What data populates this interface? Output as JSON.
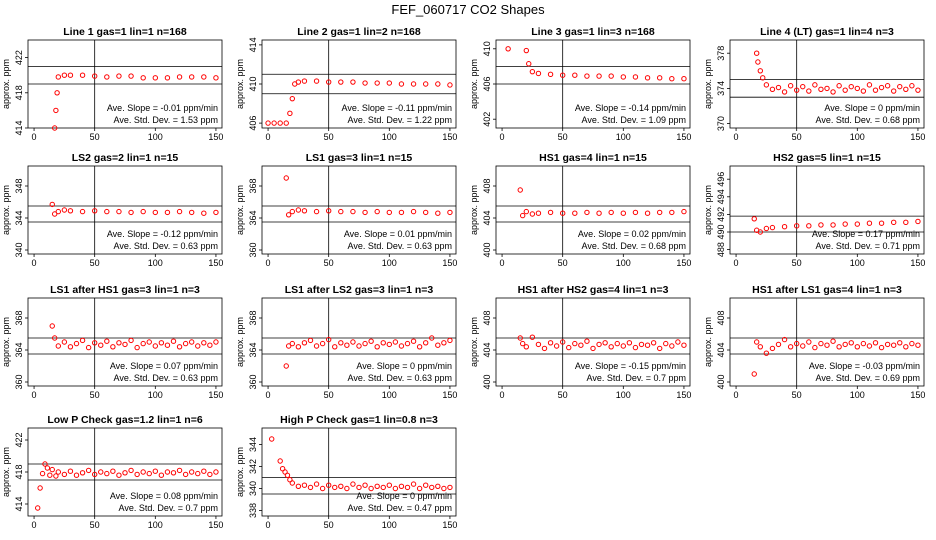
{
  "figure_title": "FEF_060717  CO2 Shapes",
  "ylabel": "approx. ppm",
  "slope_prefix": "Ave. Slope = ",
  "slope_unit": " ppm/min",
  "std_prefix": "Ave. Std. Dev. = ",
  "std_unit": " ppm",
  "chart_data": [
    {
      "type": "scatter",
      "title": "Line 1 gas=1 lin=1 n=168",
      "ylim": [
        414,
        424
      ],
      "yticks": [
        414,
        418,
        422
      ],
      "xticks": [
        0,
        50,
        100,
        150
      ],
      "hlines": [
        421,
        419
      ],
      "vline": 50,
      "slope": "-0.01",
      "std": "1.53",
      "x": [
        17,
        18,
        19,
        20,
        25,
        30,
        40,
        50,
        60,
        70,
        80,
        90,
        100,
        110,
        120,
        130,
        140,
        150
      ],
      "y": [
        414,
        416,
        418,
        419.8,
        420,
        420,
        420,
        419.9,
        419.8,
        419.9,
        419.9,
        419.7,
        419.7,
        419.7,
        419.8,
        419.8,
        419.8,
        419.7
      ]
    },
    {
      "type": "scatter",
      "title": "Line 2 gas=1 lin=2 n=168",
      "ylim": [
        405.5,
        414.5
      ],
      "yticks": [
        406,
        410,
        414
      ],
      "xticks": [
        0,
        50,
        100,
        150
      ],
      "hlines": [
        411,
        409
      ],
      "vline": 50,
      "slope": "-0.11",
      "std": "1.22",
      "x": [
        0,
        5,
        10,
        15,
        18,
        20,
        22,
        25,
        30,
        40,
        50,
        60,
        70,
        80,
        90,
        100,
        110,
        120,
        130,
        140,
        150
      ],
      "y": [
        406,
        406,
        406,
        406,
        407,
        408.5,
        410,
        410.2,
        410.3,
        410.3,
        410.2,
        410.2,
        410.2,
        410.1,
        410.1,
        410.1,
        410,
        410,
        410,
        410,
        409.9
      ],
      "filled": true
    },
    {
      "type": "scatter",
      "title": "Line 3 gas=1 lin=3 n=168",
      "ylim": [
        401,
        411
      ],
      "yticks": [
        402,
        406,
        410
      ],
      "xticks": [
        0,
        50,
        100,
        150
      ],
      "hlines": [
        408,
        406
      ],
      "vline": 50,
      "slope": "-0.14",
      "std": "1.09",
      "x": [
        5,
        20,
        22,
        25,
        30,
        40,
        50,
        60,
        70,
        80,
        90,
        100,
        110,
        120,
        130,
        140,
        150
      ],
      "y": [
        410,
        409.8,
        408.3,
        407.4,
        407.2,
        407.1,
        407,
        407,
        406.9,
        406.9,
        406.9,
        406.8,
        406.8,
        406.7,
        406.7,
        406.6,
        406.6
      ]
    },
    {
      "type": "scatter",
      "title": "Line 4 (LT) gas=1 lin=4 n=3",
      "ylim": [
        369.5,
        379.5
      ],
      "yticks": [
        370,
        374,
        378
      ],
      "xticks": [
        0,
        50,
        100,
        150
      ],
      "hlines": [
        375,
        373
      ],
      "vline": 50,
      "slope": "0",
      "std": "0.68",
      "x": [
        17,
        18,
        20,
        22,
        25,
        30,
        35,
        40,
        45,
        50,
        55,
        60,
        65,
        70,
        75,
        80,
        85,
        90,
        95,
        100,
        105,
        110,
        115,
        120,
        125,
        130,
        135,
        140,
        145,
        150
      ],
      "y": [
        378,
        377,
        376,
        375.2,
        374.4,
        373.9,
        374.1,
        373.6,
        374.3,
        373.8,
        374.2,
        373.7,
        374.4,
        373.9,
        374,
        373.6,
        374.3,
        373.8,
        374.2,
        374,
        373.7,
        374.4,
        373.8,
        374.1,
        374.3,
        373.7,
        374.2,
        373.9,
        374.3,
        373.8
      ]
    },
    {
      "type": "scatter",
      "title": "LS2 gas=2 lin=1 n=15",
      "ylim": [
        339.5,
        350.5
      ],
      "yticks": [
        340,
        344,
        348
      ],
      "xticks": [
        0,
        50,
        100,
        150
      ],
      "hlines": [
        345.5,
        343.5
      ],
      "vline": 50,
      "slope": "-0.12",
      "std": "0.63",
      "x": [
        15,
        17,
        20,
        25,
        30,
        40,
        50,
        60,
        70,
        80,
        90,
        100,
        110,
        120,
        130,
        140,
        150
      ],
      "y": [
        345.7,
        344.5,
        344.8,
        345,
        344.9,
        344.8,
        344.9,
        344.8,
        344.8,
        344.7,
        344.8,
        344.7,
        344.7,
        344.8,
        344.7,
        344.6,
        344.7
      ]
    },
    {
      "type": "scatter",
      "title": "LS1 gas=3 lin=1 n=15",
      "ylim": [
        359.5,
        370.5
      ],
      "yticks": [
        360,
        364,
        368
      ],
      "xticks": [
        0,
        50,
        100,
        150
      ],
      "hlines": [
        365.5,
        363.5
      ],
      "vline": 50,
      "slope": "0.01",
      "std": "0.63",
      "x": [
        15,
        17,
        20,
        25,
        30,
        40,
        50,
        60,
        70,
        80,
        90,
        100,
        110,
        120,
        130,
        140,
        150
      ],
      "y": [
        369,
        364.4,
        364.8,
        365,
        364.9,
        364.8,
        364.9,
        364.8,
        364.8,
        364.7,
        364.8,
        364.7,
        364.7,
        364.8,
        364.7,
        364.6,
        364.7
      ]
    },
    {
      "type": "scatter",
      "title": "HS1 gas=4 lin=1 n=15",
      "ylim": [
        399.5,
        410.5
      ],
      "yticks": [
        400,
        404,
        408
      ],
      "xticks": [
        0,
        50,
        100,
        150
      ],
      "hlines": [
        405.5,
        403.5
      ],
      "vline": 50,
      "slope": "0.02",
      "std": "0.68",
      "x": [
        15,
        17,
        20,
        25,
        30,
        40,
        50,
        60,
        70,
        80,
        90,
        100,
        110,
        120,
        130,
        140,
        150
      ],
      "y": [
        407.5,
        404.3,
        404.8,
        404.5,
        404.6,
        404.7,
        404.6,
        404.6,
        404.7,
        404.6,
        404.7,
        404.6,
        404.7,
        404.6,
        404.7,
        404.7,
        404.8
      ]
    },
    {
      "type": "scatter",
      "title": "HS2 gas=5 lin=1 n=15",
      "ylim": [
        487.5,
        497.5
      ],
      "yticks": [
        488,
        490,
        492,
        494,
        496
      ],
      "xticks": [
        0,
        50,
        100,
        150
      ],
      "hlines": [
        491.8,
        490
      ],
      "vline": 50,
      "slope": "0.17",
      "std": "0.71",
      "x": [
        15,
        17,
        20,
        25,
        30,
        40,
        50,
        60,
        70,
        80,
        90,
        100,
        110,
        120,
        130,
        140,
        150
      ],
      "y": [
        491.5,
        490.2,
        490,
        490.4,
        490.5,
        490.6,
        490.7,
        490.7,
        490.8,
        490.8,
        490.9,
        490.9,
        491,
        491,
        491.1,
        491.1,
        491.2
      ]
    },
    {
      "type": "scatter",
      "title": "LS1 after HS1 gas=3 lin=1 n=3",
      "ylim": [
        359.5,
        370.5
      ],
      "yticks": [
        360,
        364,
        368
      ],
      "xticks": [
        0,
        50,
        100,
        150
      ],
      "hlines": [
        365.5,
        363.5
      ],
      "vline": 50,
      "slope": "0.07",
      "std": "0.63",
      "x": [
        15,
        17,
        20,
        25,
        30,
        35,
        40,
        45,
        50,
        55,
        60,
        65,
        70,
        75,
        80,
        85,
        90,
        95,
        100,
        105,
        110,
        115,
        120,
        125,
        130,
        135,
        140,
        145,
        150
      ],
      "y": [
        367,
        365.5,
        364.5,
        365,
        364.4,
        364.8,
        365.2,
        364.3,
        364.9,
        364.6,
        365.1,
        364.4,
        364.9,
        364.7,
        365.2,
        364.3,
        364.8,
        365,
        364.5,
        364.9,
        364.6,
        365.1,
        364.4,
        364.8,
        365,
        364.5,
        364.9,
        364.6,
        365
      ]
    },
    {
      "type": "scatter",
      "title": "LS1 after LS2 gas=3 lin=1 n=3",
      "ylim": [
        359.5,
        370.5
      ],
      "yticks": [
        360,
        364,
        368
      ],
      "xticks": [
        0,
        50,
        100,
        150
      ],
      "hlines": [
        365.5,
        363.5
      ],
      "vline": 50,
      "slope": "0",
      "std": "0.63",
      "x": [
        15,
        17,
        20,
        25,
        30,
        35,
        40,
        45,
        50,
        55,
        60,
        65,
        70,
        75,
        80,
        85,
        90,
        95,
        100,
        105,
        110,
        115,
        120,
        125,
        130,
        135,
        140,
        145,
        150
      ],
      "y": [
        362,
        364.5,
        364.8,
        364.4,
        364.9,
        365.2,
        364.5,
        364.8,
        365.3,
        364.4,
        364.9,
        364.6,
        365,
        364.5,
        364.8,
        365.1,
        364.4,
        364.9,
        364.7,
        365,
        364.5,
        364.8,
        365.1,
        364.4,
        364.9,
        365.5,
        364.6,
        364.9,
        365.2
      ]
    },
    {
      "type": "scatter",
      "title": "HS1 after HS2 gas=4 lin=1 n=3",
      "ylim": [
        399.5,
        410.5
      ],
      "yticks": [
        400,
        404,
        408
      ],
      "xticks": [
        0,
        50,
        100,
        150
      ],
      "hlines": [
        405.5,
        403.5
      ],
      "vline": 50,
      "slope": "-0.15",
      "std": "0.7",
      "x": [
        15,
        17,
        20,
        25,
        30,
        35,
        40,
        45,
        50,
        55,
        60,
        65,
        70,
        75,
        80,
        85,
        90,
        95,
        100,
        105,
        110,
        115,
        120,
        125,
        130,
        135,
        140,
        145,
        150
      ],
      "y": [
        405.5,
        404.8,
        404.4,
        405.6,
        404.7,
        404.2,
        404.9,
        404.5,
        405,
        404.3,
        404.8,
        404.6,
        405.1,
        404.2,
        404.7,
        404.9,
        404.4,
        404.8,
        404.5,
        404.9,
        404.3,
        404.7,
        404.6,
        404.9,
        404.2,
        404.8,
        404.5,
        405,
        404.6
      ]
    },
    {
      "type": "scatter",
      "title": "HS1 after LS1 gas=4 lin=1 n=3",
      "ylim": [
        399.5,
        410.5
      ],
      "yticks": [
        400,
        404,
        408
      ],
      "xticks": [
        0,
        50,
        100,
        150
      ],
      "hlines": [
        405.5,
        403.5
      ],
      "vline": 50,
      "slope": "-0.03",
      "std": "0.69",
      "x": [
        15,
        17,
        20,
        25,
        30,
        35,
        40,
        45,
        50,
        55,
        60,
        65,
        70,
        75,
        80,
        85,
        90,
        95,
        100,
        105,
        110,
        115,
        120,
        125,
        130,
        135,
        140,
        145,
        150
      ],
      "y": [
        401,
        405,
        404.4,
        403.6,
        404.2,
        404.7,
        405.3,
        404.4,
        404.8,
        404.5,
        405,
        404.3,
        404.8,
        404.6,
        405.1,
        404.4,
        404.7,
        404.9,
        404.4,
        404.8,
        404.5,
        404.9,
        404.3,
        404.7,
        404.6,
        404.9,
        404.4,
        404.8,
        404.6
      ]
    },
    {
      "type": "scatter",
      "title": "Low P Check gas=1.2 lin=1 n=6",
      "ylim": [
        412.5,
        423.5
      ],
      "yticks": [
        414,
        418,
        422
      ],
      "xticks": [
        0,
        50,
        100,
        150
      ],
      "hlines": [
        419,
        417
      ],
      "vline": 50,
      "slope": "0.08",
      "std": "0.7",
      "x": [
        3,
        5,
        7,
        9,
        11,
        13,
        15,
        18,
        20,
        25,
        30,
        35,
        40,
        45,
        50,
        55,
        60,
        65,
        70,
        75,
        80,
        85,
        90,
        95,
        100,
        105,
        110,
        115,
        120,
        125,
        130,
        135,
        140,
        145,
        150
      ],
      "y": [
        413.5,
        416,
        417.8,
        419,
        418.5,
        417.6,
        418.3,
        417.5,
        418,
        417.7,
        418.1,
        417.6,
        417.9,
        418.2,
        417.7,
        418,
        417.8,
        418.1,
        417.6,
        417.9,
        418.2,
        417.7,
        418,
        417.8,
        418.1,
        417.6,
        418,
        417.9,
        418.2,
        417.7,
        418,
        417.8,
        418.1,
        417.7,
        418
      ]
    },
    {
      "type": "scatter",
      "title": "High P Check gas=1 lin=0.8 n=3",
      "ylim": [
        337.5,
        345.5
      ],
      "yticks": [
        338,
        340,
        342,
        344
      ],
      "xticks": [
        0,
        50,
        100,
        150
      ],
      "hlines": [
        341,
        339.5
      ],
      "vline": 50,
      "slope": "0",
      "std": "0.47",
      "x": [
        3,
        10,
        12,
        14,
        16,
        18,
        20,
        25,
        30,
        35,
        40,
        45,
        50,
        55,
        60,
        65,
        70,
        75,
        80,
        85,
        90,
        95,
        100,
        105,
        110,
        115,
        120,
        125,
        130,
        135,
        140,
        145,
        150
      ],
      "y": [
        344.5,
        342.5,
        341.8,
        341.5,
        341.2,
        340.8,
        340.5,
        340.2,
        340.3,
        340.1,
        340.4,
        340,
        340.3,
        340.1,
        340.2,
        340,
        340.4,
        340.1,
        340.3,
        340,
        340.2,
        340.1,
        340.3,
        340,
        340.2,
        340.1,
        340.4,
        340,
        340.3,
        340.1,
        340.2,
        340,
        340.1
      ]
    }
  ]
}
